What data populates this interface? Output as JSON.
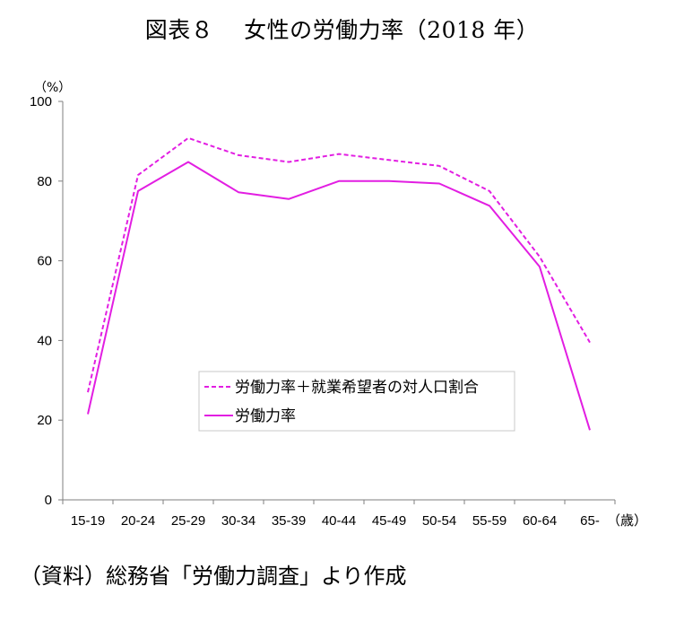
{
  "title": "図表８　 女性の労働力率（2018 年）",
  "source": "（資料）総務省「労働力調査」より作成",
  "colors": {
    "line": "#e21ee2",
    "axis": "#7f7f7f"
  },
  "chart_data": {
    "type": "line",
    "categories": [
      "15-19",
      "20-24",
      "25-29",
      "30-34",
      "35-39",
      "40-44",
      "45-49",
      "50-54",
      "55-59",
      "60-64",
      "65-"
    ],
    "series": [
      {
        "name": "労働力率＋就業希望者の対人口割合",
        "style": "dashed",
        "values": [
          27,
          81.5,
          90.8,
          86.5,
          84.8,
          86.8,
          85.3,
          83.8,
          77.5,
          61,
          39.5
        ]
      },
      {
        "name": "労働力率",
        "style": "solid",
        "values": [
          21.5,
          77.5,
          84.8,
          77.2,
          75.5,
          80,
          80,
          79.4,
          73.8,
          58.5,
          17.5
        ]
      }
    ],
    "yticks": [
      0,
      20,
      40,
      60,
      80,
      100
    ],
    "ylim": [
      0,
      100
    ],
    "ylabel": "（%）",
    "xunit": "（歳）",
    "legend": "inside-lower-middle",
    "grid": false
  }
}
